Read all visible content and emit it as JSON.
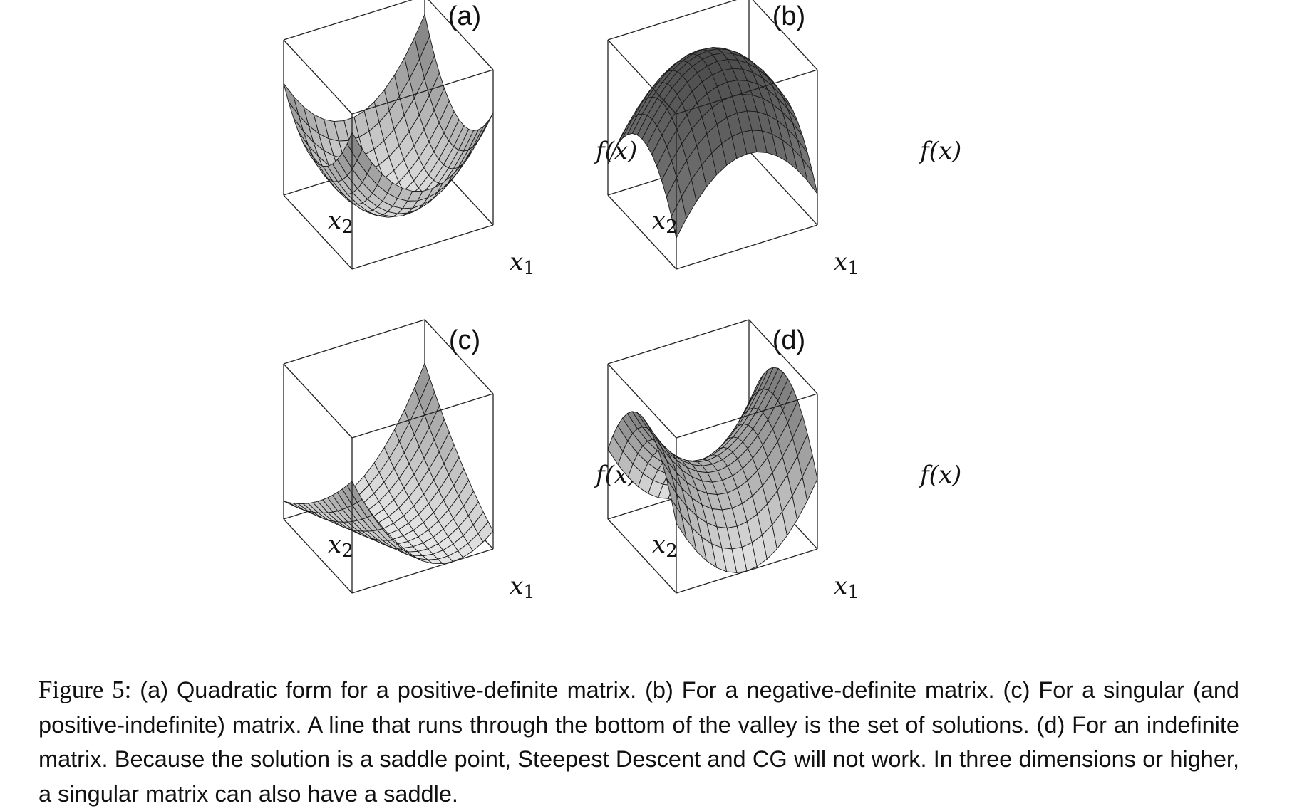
{
  "panels": [
    {
      "label": "(a)",
      "surface": "positive-definite",
      "x1_label": "x1",
      "x2_label": "x2",
      "f_label": "f(x)"
    },
    {
      "label": "(b)",
      "surface": "negative-definite",
      "x1_label": "x1",
      "x2_label": "x2",
      "f_label": "f(x)"
    },
    {
      "label": "(c)",
      "surface": "singular",
      "x1_label": "x1",
      "x2_label": "x2",
      "f_label": "f(x)"
    },
    {
      "label": "(d)",
      "surface": "indefinite",
      "x1_label": "x1",
      "x2_label": "x2",
      "f_label": "f(x)"
    }
  ],
  "caption": {
    "figure_label": "Figure 5:",
    "text": "(a) Quadratic form for a positive-definite matrix.  (b) For a negative-definite matrix.  (c) For a singular (and positive-indefinite) matrix.  A line that runs through the bottom of the valley is the set of solutions.  (d) For an indefinite matrix.  Because the solution is a saddle point, Steepest Descent and CG will not work.  In three dimensions or higher, a singular matrix can also have a saddle."
  },
  "colors": {
    "ink": "#111111",
    "surface_light": "#e8e8e8",
    "surface_dark": "#202020"
  }
}
